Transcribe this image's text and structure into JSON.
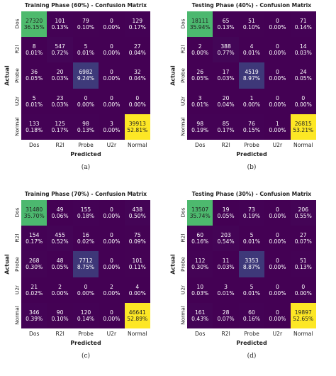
{
  "chart_data": [
    {
      "type": "heatmap",
      "title": "Training Phase (60%) - Confusion Matrix",
      "xlabel": "Predicted",
      "ylabel": "Actual",
      "caption": "(a)",
      "x_labels": [
        "Dos",
        "R2l",
        "Probe",
        "U2r",
        "Normal"
      ],
      "y_labels": [
        "Dos",
        "R2l",
        "Probe",
        "U2r",
        "Normal"
      ],
      "counts": [
        [
          27320,
          101,
          79,
          0,
          129
        ],
        [
          8,
          547,
          5,
          0,
          27
        ],
        [
          36,
          20,
          6982,
          0,
          32
        ],
        [
          5,
          23,
          0,
          0,
          0
        ],
        [
          133,
          125,
          98,
          3,
          39913
        ]
      ],
      "percents": [
        [
          "36.15%",
          "0.13%",
          "0.10%",
          "0.00%",
          "0.17%"
        ],
        [
          "0.01%",
          "0.72%",
          "0.01%",
          "0.00%",
          "0.04%"
        ],
        [
          "0.05%",
          "0.03%",
          "9.24%",
          "0.00%",
          "0.04%"
        ],
        [
          "0.01%",
          "0.03%",
          "0.00%",
          "0.00%",
          "0.00%"
        ],
        [
          "0.18%",
          "0.17%",
          "0.13%",
          "0.00%",
          "52.81%"
        ]
      ]
    },
    {
      "type": "heatmap",
      "title": "Testing Phase (40%) - Confusion Matrix",
      "xlabel": "Predicted",
      "ylabel": "Actual",
      "caption": "(b)",
      "x_labels": [
        "Dos",
        "R2l",
        "Probe",
        "U2r",
        "Normal"
      ],
      "y_labels": [
        "Dos",
        "R2l",
        "Probe",
        "U2r",
        "Normal"
      ],
      "counts": [
        [
          18111,
          65,
          51,
          0,
          71
        ],
        [
          2,
          388,
          4,
          0,
          14
        ],
        [
          26,
          17,
          4519,
          0,
          24
        ],
        [
          3,
          20,
          1,
          0,
          0
        ],
        [
          98,
          85,
          76,
          1,
          26815
        ]
      ],
      "percents": [
        [
          "35.94%",
          "0.13%",
          "0.10%",
          "0.00%",
          "0.14%"
        ],
        [
          "0.00%",
          "0.77%",
          "0.01%",
          "0.00%",
          "0.03%"
        ],
        [
          "0.05%",
          "0.03%",
          "8.97%",
          "0.00%",
          "0.05%"
        ],
        [
          "0.01%",
          "0.04%",
          "0.00%",
          "0.00%",
          "0.00%"
        ],
        [
          "0.19%",
          "0.17%",
          "0.15%",
          "0.00%",
          "53.21%"
        ]
      ]
    },
    {
      "type": "heatmap",
      "title": "Training Phase (70%) - Confusion Matrix",
      "xlabel": "Predicted",
      "ylabel": "Actual",
      "caption": "(c)",
      "x_labels": [
        "Dos",
        "R2l",
        "Probe",
        "U2r",
        "Normal"
      ],
      "y_labels": [
        "Dos",
        "R2l",
        "Probe",
        "U2r",
        "Normal"
      ],
      "counts": [
        [
          31480,
          49,
          155,
          0,
          438
        ],
        [
          154,
          455,
          16,
          0,
          75
        ],
        [
          268,
          48,
          7712,
          0,
          101
        ],
        [
          21,
          2,
          0,
          2,
          4
        ],
        [
          346,
          90,
          120,
          0,
          46641
        ]
      ],
      "percents": [
        [
          "35.70%",
          "0.06%",
          "0.18%",
          "0.00%",
          "0.50%"
        ],
        [
          "0.17%",
          "0.52%",
          "0.02%",
          "0.00%",
          "0.09%"
        ],
        [
          "0.30%",
          "0.05%",
          "8.75%",
          "0.00%",
          "0.11%"
        ],
        [
          "0.02%",
          "0.00%",
          "0.00%",
          "0.00%",
          "0.00%"
        ],
        [
          "0.39%",
          "0.10%",
          "0.14%",
          "0.00%",
          "52.89%"
        ]
      ]
    },
    {
      "type": "heatmap",
      "title": "Testing Phase (30%) - Confusion Matrix",
      "xlabel": "Predicted",
      "ylabel": "Actual",
      "caption": "(d)",
      "x_labels": [
        "Dos",
        "R2l",
        "Probe",
        "U2r",
        "Normal"
      ],
      "y_labels": [
        "Dos",
        "R2l",
        "Probe",
        "U2r",
        "Normal"
      ],
      "counts": [
        [
          13507,
          19,
          73,
          0,
          206
        ],
        [
          60,
          203,
          5,
          0,
          27
        ],
        [
          112,
          11,
          3353,
          0,
          51
        ],
        [
          10,
          3,
          5,
          0,
          0
        ],
        [
          161,
          28,
          60,
          0,
          19897
        ]
      ],
      "percents": [
        [
          "35.74%",
          "0.05%",
          "0.19%",
          "0.00%",
          "0.55%"
        ],
        [
          "0.16%",
          "0.54%",
          "0.01%",
          "0.00%",
          "0.07%"
        ],
        [
          "0.30%",
          "0.03%",
          "8.87%",
          "0.00%",
          "0.13%"
        ],
        [
          "0.03%",
          "0.01%",
          "0.01%",
          "0.00%",
          "0.00%"
        ],
        [
          "0.43%",
          "0.07%",
          "0.16%",
          "0.00%",
          "52.65%"
        ]
      ]
    }
  ],
  "colors": {
    "low": "#440154",
    "mid_low": "#3b528b",
    "mid": "#21918c",
    "mid_high": "#5ec962",
    "high": "#fde725"
  }
}
